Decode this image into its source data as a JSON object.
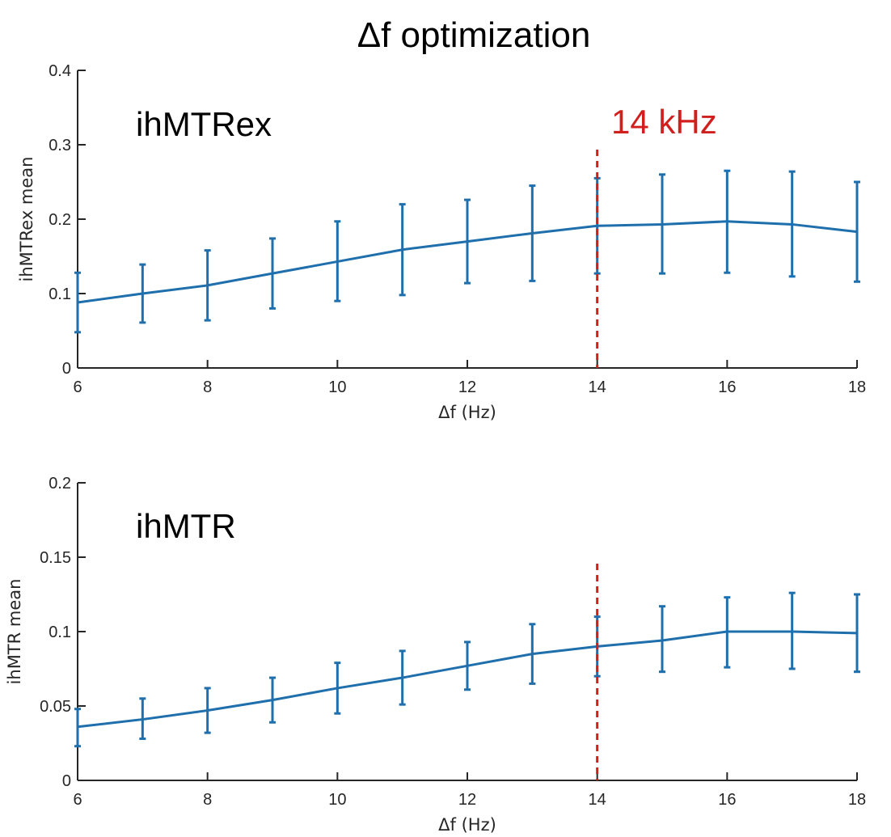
{
  "title": "Δf optimization",
  "colors": {
    "series": "#1f6fad",
    "reference": "#d0201e",
    "axis": "#262626"
  },
  "chart_data": [
    {
      "type": "line",
      "panel_label": "ihMTRex",
      "xlabel": "Δf (Hz)",
      "ylabel": "ihMTRex mean",
      "xlim": [
        6,
        18
      ],
      "ylim": [
        0,
        0.4
      ],
      "x_ticks": [
        6,
        8,
        10,
        12,
        14,
        16,
        18
      ],
      "x_tick_labels": [
        "6",
        "8",
        "10",
        "12",
        "14",
        "16",
        "18"
      ],
      "y_ticks": [
        0,
        0.1,
        0.2,
        0.3,
        0.4
      ],
      "y_tick_labels": [
        "0",
        "0.1",
        "0.2",
        "0.3",
        "0.4"
      ],
      "x": [
        6,
        7,
        8,
        9,
        10,
        11,
        12,
        13,
        14,
        15,
        16,
        17,
        18
      ],
      "mean": [
        0.088,
        0.1,
        0.111,
        0.127,
        0.143,
        0.159,
        0.17,
        0.181,
        0.191,
        0.193,
        0.197,
        0.193,
        0.183
      ],
      "err_low": [
        0.048,
        0.061,
        0.064,
        0.08,
        0.09,
        0.098,
        0.114,
        0.117,
        0.127,
        0.127,
        0.128,
        0.123,
        0.116
      ],
      "err_high": [
        0.128,
        0.139,
        0.158,
        0.174,
        0.197,
        0.22,
        0.226,
        0.245,
        0.255,
        0.26,
        0.265,
        0.264,
        0.25
      ],
      "reference_x": 14,
      "reference_label": "14 kHz"
    },
    {
      "type": "line",
      "panel_label": "ihMTR",
      "xlabel": "Δf (Hz)",
      "ylabel": "ihMTR mean",
      "xlim": [
        6,
        18
      ],
      "ylim": [
        0,
        0.2
      ],
      "x_ticks": [
        6,
        8,
        10,
        12,
        14,
        16,
        18
      ],
      "x_tick_labels": [
        "6",
        "8",
        "10",
        "12",
        "14",
        "16",
        "18"
      ],
      "y_ticks": [
        0,
        0.05,
        0.1,
        0.15,
        0.2
      ],
      "y_tick_labels": [
        "0",
        "0.05",
        "0.1",
        "0.15",
        "0.2"
      ],
      "x": [
        6,
        7,
        8,
        9,
        10,
        11,
        12,
        13,
        14,
        15,
        16,
        17,
        18
      ],
      "mean": [
        0.036,
        0.041,
        0.047,
        0.054,
        0.062,
        0.069,
        0.077,
        0.085,
        0.09,
        0.094,
        0.1,
        0.1,
        0.099
      ],
      "err_low": [
        0.023,
        0.028,
        0.032,
        0.039,
        0.045,
        0.051,
        0.061,
        0.065,
        0.07,
        0.073,
        0.076,
        0.075,
        0.073
      ],
      "err_high": [
        0.048,
        0.055,
        0.062,
        0.069,
        0.079,
        0.087,
        0.093,
        0.105,
        0.11,
        0.117,
        0.123,
        0.126,
        0.125
      ],
      "reference_x": 14,
      "reference_label": ""
    }
  ]
}
